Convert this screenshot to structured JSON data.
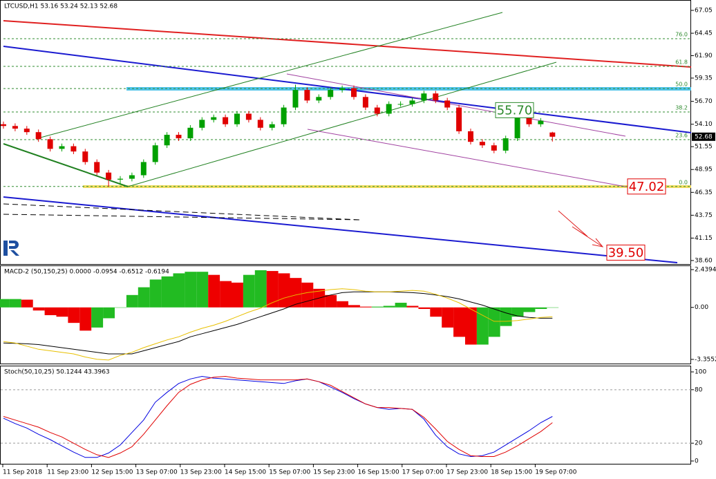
{
  "chart_data": [
    {
      "type": "candlestick",
      "title": "LTCUSD,H1  53.16 53.24 52.13 52.68",
      "open": [
        54.1,
        53.9,
        53.6,
        53.2,
        52.4,
        51.3,
        51.6,
        51.0,
        49.8,
        48.6,
        47.8,
        47.9,
        48.3,
        49.8,
        51.7,
        52.9,
        52.5,
        53.7,
        54.6,
        54.9,
        54.1,
        55.3,
        54.6,
        53.7,
        54.1,
        56.0,
        58.0,
        56.8,
        57.2,
        58.0,
        58.2,
        57.2,
        56.0,
        55.3,
        56.4,
        56.4,
        56.8,
        57.6,
        56.8,
        56.0,
        53.3,
        52.1,
        51.7,
        51.1,
        52.5,
        54.9,
        54.1,
        53.16
      ],
      "high": [
        54.4,
        54.2,
        53.9,
        53.5,
        52.7,
        51.9,
        51.9,
        51.3,
        50.1,
        48.9,
        48.2,
        48.6,
        50.1,
        52.0,
        53.2,
        53.2,
        54.0,
        54.9,
        55.2,
        55.2,
        55.6,
        55.6,
        54.9,
        54.4,
        56.3,
        58.6,
        58.3,
        57.5,
        58.3,
        58.5,
        58.5,
        57.5,
        56.3,
        56.7,
        56.7,
        57.1,
        57.9,
        57.9,
        57.1,
        56.3,
        53.6,
        52.4,
        52.0,
        52.8,
        55.7,
        55.2,
        54.8,
        53.24
      ],
      "low": [
        53.6,
        53.3,
        52.9,
        52.1,
        51.0,
        51.0,
        50.7,
        49.5,
        48.3,
        47.0,
        47.2,
        47.6,
        48.0,
        49.5,
        51.4,
        52.2,
        52.2,
        53.4,
        54.3,
        53.8,
        53.8,
        54.3,
        53.4,
        53.4,
        53.8,
        55.7,
        56.5,
        56.5,
        56.9,
        57.7,
        56.9,
        55.7,
        55.0,
        55.0,
        56.1,
        56.1,
        56.5,
        56.5,
        55.7,
        53.0,
        51.8,
        51.4,
        50.8,
        50.8,
        52.2,
        53.8,
        53.8,
        52.13
      ],
      "close": [
        53.9,
        53.6,
        53.2,
        52.4,
        51.3,
        51.6,
        51.0,
        49.8,
        48.6,
        47.8,
        47.9,
        48.3,
        49.8,
        51.7,
        52.9,
        52.5,
        53.7,
        54.6,
        54.9,
        54.1,
        55.3,
        54.6,
        53.7,
        54.1,
        56.0,
        58.0,
        56.8,
        57.2,
        58.0,
        58.2,
        57.2,
        56.0,
        55.3,
        56.4,
        56.4,
        56.8,
        57.6,
        56.8,
        56.0,
        53.3,
        52.1,
        51.7,
        51.1,
        52.5,
        54.9,
        54.1,
        54.5,
        52.68
      ],
      "up_color": "#00a000",
      "down_color": "#e00000",
      "ylim": [
        38.12,
        68.23
      ],
      "yticks": [
        {
          "value": 67.05,
          "label": "67.05"
        },
        {
          "value": 64.45,
          "label": "64.45"
        },
        {
          "value": 61.9,
          "label": "61.90"
        },
        {
          "value": 59.35,
          "label": "59.35"
        },
        {
          "value": 56.7,
          "label": "56.70"
        },
        {
          "value": 54.1,
          "label": "54.10"
        },
        {
          "value": 51.55,
          "label": "51.55"
        },
        {
          "value": 48.95,
          "label": "48.95"
        },
        {
          "value": 46.35,
          "label": "46.35"
        },
        {
          "value": 43.75,
          "label": "43.75"
        },
        {
          "value": 41.15,
          "label": "41.15"
        },
        {
          "value": 38.6,
          "label": "38.60"
        }
      ],
      "current_price": {
        "value": 52.68,
        "label": "52.68"
      },
      "fib_levels": [
        {
          "label": "76.0",
          "value": 63.83
        },
        {
          "label": "61.8",
          "value": 60.68
        },
        {
          "label": "50.0",
          "value": 58.16
        },
        {
          "label": "38.2",
          "value": 55.49
        },
        {
          "label": "23.6",
          "value": 52.35
        },
        {
          "label": "0.0",
          "value": 47.02
        }
      ],
      "price_labels": [
        {
          "value": 55.7,
          "label": "55.70",
          "color": "#2e8b2e"
        },
        {
          "value": 47.02,
          "label": "47.02",
          "color": "#e00000"
        },
        {
          "value": 39.5,
          "label": "39.50",
          "color": "#e00000"
        }
      ]
    },
    {
      "type": "bar",
      "title": "MACD-2 (50,150,25) 0.0000 -0.0954 -0.6512 -0.6194",
      "values": [
        0.54,
        0.54,
        0.5,
        -0.2,
        -0.5,
        -0.6,
        -1.0,
        -1.5,
        -1.3,
        -0.7,
        0.0,
        0.8,
        1.3,
        1.8,
        2.0,
        2.2,
        2.3,
        2.3,
        2.1,
        1.7,
        1.6,
        2.1,
        2.4,
        2.35,
        2.2,
        1.9,
        1.6,
        1.2,
        0.8,
        0.4,
        0.15,
        0.05,
        0.05,
        0.1,
        0.3,
        0.1,
        -0.1,
        -0.6,
        -1.3,
        -1.9,
        -2.4,
        -2.4,
        -1.9,
        -1.2,
        -0.6,
        -0.3,
        -0.1,
        0.0
      ],
      "up_color": "#22bb22",
      "down_color": "#ee0000",
      "lines": [
        {
          "color": "#000000",
          "values": [
            -2.3,
            -2.32,
            -2.35,
            -2.4,
            -2.5,
            -2.6,
            -2.7,
            -2.8,
            -2.9,
            -3.0,
            -3.0,
            -3.0,
            -2.8,
            -2.6,
            -2.4,
            -2.2,
            -1.9,
            -1.7,
            -1.5,
            -1.3,
            -1.1,
            -0.85,
            -0.6,
            -0.35,
            -0.1,
            0.2,
            0.4,
            0.6,
            0.8,
            0.95,
            1.0,
            1.0,
            1.0,
            1.0,
            0.98,
            0.95,
            0.9,
            0.8,
            0.7,
            0.55,
            0.35,
            0.15,
            -0.1,
            -0.35,
            -0.55,
            -0.65,
            -0.7,
            -0.7
          ]
        },
        {
          "color": "#e8c000",
          "values": [
            -2.2,
            -2.3,
            -2.5,
            -2.7,
            -2.8,
            -2.9,
            -3.0,
            -3.2,
            -3.35,
            -3.4,
            -3.1,
            -2.9,
            -2.6,
            -2.35,
            -2.1,
            -1.9,
            -1.6,
            -1.35,
            -1.15,
            -0.9,
            -0.6,
            -0.3,
            -0.05,
            0.3,
            0.6,
            0.8,
            0.95,
            1.05,
            1.15,
            1.2,
            1.15,
            1.05,
            1.0,
            1.0,
            1.05,
            1.1,
            1.05,
            0.85,
            0.6,
            0.3,
            -0.1,
            -0.5,
            -0.9,
            -0.9,
            -0.85,
            -0.75,
            -0.65,
            -0.6
          ]
        }
      ],
      "ylim": [
        -3.67,
        2.71
      ],
      "yticks": [
        2.4394,
        {
          "value": 0,
          "label": "0.00"
        },
        -3.3552
      ]
    },
    {
      "type": "line",
      "title": "Stoch(50,10,25) 50.1244 43.3963",
      "series": [
        {
          "color": "#0000e0",
          "values": [
            48,
            42,
            37,
            30,
            24,
            17,
            10,
            4,
            4,
            9,
            18,
            32,
            46,
            66,
            77,
            87,
            92,
            95,
            93,
            92,
            91,
            90,
            89,
            88,
            87,
            90,
            92,
            89,
            83,
            77,
            70,
            64,
            60,
            58,
            59,
            58,
            47,
            29,
            16,
            8,
            5,
            6,
            10,
            18,
            26,
            34,
            43,
            50
          ]
        },
        {
          "color": "#e00000",
          "values": [
            50,
            46,
            42,
            38,
            32,
            27,
            20,
            13,
            7,
            4,
            9,
            16,
            30,
            46,
            62,
            77,
            86,
            91,
            94,
            95,
            93,
            92,
            91,
            91,
            91,
            91,
            92,
            89,
            85,
            78,
            71,
            64,
            60,
            60,
            59,
            58,
            49,
            36,
            22,
            13,
            6,
            5,
            5,
            10,
            17,
            25,
            33,
            43
          ]
        }
      ],
      "ylim": [
        -3.9,
        107
      ],
      "yticks": [
        0,
        20,
        80,
        100
      ],
      "levels": [
        20,
        80
      ],
      "x_labels": [
        "11 Sep 2018",
        "11 Sep 23:00",
        "12 Sep 15:00",
        "13 Sep 07:00",
        "13 Sep 23:00",
        "14 Sep 15:00",
        "15 Sep 07:00",
        "15 Sep 23:00",
        "16 Sep 15:00",
        "17 Sep 07:00",
        "17 Sep 23:00",
        "18 Sep 15:00",
        "19 Sep 07:00"
      ]
    }
  ]
}
